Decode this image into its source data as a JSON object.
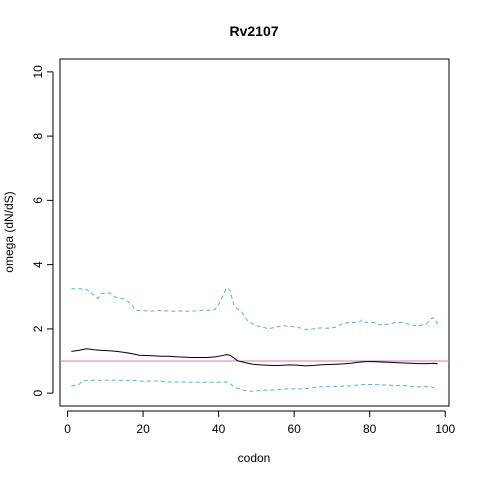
{
  "chart_data": {
    "type": "line",
    "title": "Rv2107",
    "xlabel": "codon",
    "ylabel": "omega (dN/dS)",
    "xlim": [
      -2,
      101
    ],
    "ylim": [
      -0.4,
      10.4
    ],
    "x_ticks": [
      0,
      20,
      40,
      60,
      80,
      100
    ],
    "y_ticks": [
      0,
      2,
      4,
      6,
      8,
      10
    ],
    "x_tick_labels": [
      "0",
      "20",
      "40",
      "60",
      "80",
      "100"
    ],
    "y_tick_labels": [
      "0",
      "2",
      "4",
      "6",
      "8",
      "10"
    ],
    "grid": false,
    "reference_line": {
      "y": 1,
      "color": "#c080c0"
    },
    "series": [
      {
        "role": "estimate",
        "style": "solid",
        "color": "#000000",
        "points": [
          [
            1,
            1.3
          ],
          [
            3,
            1.33
          ],
          [
            5,
            1.38
          ],
          [
            7,
            1.35
          ],
          [
            9,
            1.33
          ],
          [
            11,
            1.32
          ],
          [
            13,
            1.3
          ],
          [
            15,
            1.27
          ],
          [
            17,
            1.23
          ],
          [
            19,
            1.18
          ],
          [
            21,
            1.17
          ],
          [
            23,
            1.16
          ],
          [
            25,
            1.15
          ],
          [
            27,
            1.15
          ],
          [
            29,
            1.13
          ],
          [
            31,
            1.12
          ],
          [
            33,
            1.11
          ],
          [
            35,
            1.11
          ],
          [
            37,
            1.11
          ],
          [
            39,
            1.13
          ],
          [
            41,
            1.17
          ],
          [
            42,
            1.2
          ],
          [
            43,
            1.18
          ],
          [
            44,
            1.1
          ],
          [
            45,
            1.01
          ],
          [
            47,
            0.95
          ],
          [
            49,
            0.9
          ],
          [
            51,
            0.88
          ],
          [
            53,
            0.87
          ],
          [
            55,
            0.86
          ],
          [
            57,
            0.87
          ],
          [
            59,
            0.88
          ],
          [
            61,
            0.87
          ],
          [
            63,
            0.85
          ],
          [
            65,
            0.86
          ],
          [
            67,
            0.88
          ],
          [
            69,
            0.89
          ],
          [
            71,
            0.9
          ],
          [
            73,
            0.91
          ],
          [
            75,
            0.93
          ],
          [
            77,
            0.96
          ],
          [
            79,
            0.98
          ],
          [
            81,
            0.98
          ],
          [
            83,
            0.97
          ],
          [
            85,
            0.96
          ],
          [
            87,
            0.95
          ],
          [
            89,
            0.94
          ],
          [
            91,
            0.93
          ],
          [
            93,
            0.92
          ],
          [
            95,
            0.92
          ],
          [
            97,
            0.93
          ],
          [
            98,
            0.91
          ]
        ]
      },
      {
        "role": "upper",
        "style": "dashed",
        "color": "#4fb3e8",
        "points": [
          [
            1,
            3.25
          ],
          [
            3,
            3.25
          ],
          [
            5,
            3.23
          ],
          [
            7,
            3.05
          ],
          [
            8,
            2.95
          ],
          [
            9,
            3.1
          ],
          [
            11,
            3.12
          ],
          [
            13,
            2.97
          ],
          [
            15,
            2.93
          ],
          [
            16,
            2.85
          ],
          [
            17,
            2.75
          ],
          [
            18,
            2.58
          ],
          [
            20,
            2.57
          ],
          [
            22,
            2.55
          ],
          [
            24,
            2.57
          ],
          [
            26,
            2.56
          ],
          [
            28,
            2.55
          ],
          [
            30,
            2.56
          ],
          [
            32,
            2.55
          ],
          [
            34,
            2.56
          ],
          [
            36,
            2.58
          ],
          [
            38,
            2.58
          ],
          [
            39,
            2.6
          ],
          [
            40,
            2.75
          ],
          [
            41,
            3.0
          ],
          [
            42,
            3.25
          ],
          [
            42.5,
            3.27
          ],
          [
            43,
            3.2
          ],
          [
            44,
            2.75
          ],
          [
            45,
            2.62
          ],
          [
            46,
            2.55
          ],
          [
            47,
            2.35
          ],
          [
            48,
            2.22
          ],
          [
            50,
            2.1
          ],
          [
            52,
            2.05
          ],
          [
            53,
            2.0
          ],
          [
            55,
            2.05
          ],
          [
            57,
            2.1
          ],
          [
            59,
            2.08
          ],
          [
            61,
            2.05
          ],
          [
            63,
            1.98
          ],
          [
            65,
            2.0
          ],
          [
            67,
            2.03
          ],
          [
            69,
            2.02
          ],
          [
            71,
            2.05
          ],
          [
            73,
            2.18
          ],
          [
            75,
            2.2
          ],
          [
            77,
            2.2
          ],
          [
            78,
            2.28
          ],
          [
            79,
            2.2
          ],
          [
            81,
            2.2
          ],
          [
            83,
            2.12
          ],
          [
            85,
            2.15
          ],
          [
            87,
            2.2
          ],
          [
            89,
            2.2
          ],
          [
            91,
            2.12
          ],
          [
            93,
            2.1
          ],
          [
            95,
            2.15
          ],
          [
            96,
            2.3
          ],
          [
            97,
            2.35
          ],
          [
            98,
            2.15
          ]
        ]
      },
      {
        "role": "lower",
        "style": "dashed",
        "color": "#4fb3e8",
        "points": [
          [
            1,
            0.22
          ],
          [
            3,
            0.27
          ],
          [
            4,
            0.38
          ],
          [
            6,
            0.4
          ],
          [
            8,
            0.4
          ],
          [
            10,
            0.4
          ],
          [
            12,
            0.4
          ],
          [
            14,
            0.4
          ],
          [
            16,
            0.4
          ],
          [
            18,
            0.39
          ],
          [
            20,
            0.37
          ],
          [
            22,
            0.38
          ],
          [
            24,
            0.38
          ],
          [
            26,
            0.36
          ],
          [
            28,
            0.34
          ],
          [
            30,
            0.35
          ],
          [
            32,
            0.34
          ],
          [
            34,
            0.34
          ],
          [
            36,
            0.34
          ],
          [
            38,
            0.34
          ],
          [
            40,
            0.34
          ],
          [
            42,
            0.35
          ],
          [
            43,
            0.3
          ],
          [
            44,
            0.2
          ],
          [
            45,
            0.15
          ],
          [
            47,
            0.08
          ],
          [
            49,
            0.06
          ],
          [
            51,
            0.08
          ],
          [
            53,
            0.1
          ],
          [
            55,
            0.1
          ],
          [
            57,
            0.12
          ],
          [
            59,
            0.14
          ],
          [
            61,
            0.13
          ],
          [
            63,
            0.14
          ],
          [
            65,
            0.17
          ],
          [
            67,
            0.2
          ],
          [
            69,
            0.2
          ],
          [
            71,
            0.21
          ],
          [
            73,
            0.22
          ],
          [
            75,
            0.23
          ],
          [
            77,
            0.26
          ],
          [
            79,
            0.27
          ],
          [
            81,
            0.27
          ],
          [
            83,
            0.26
          ],
          [
            85,
            0.25
          ],
          [
            87,
            0.24
          ],
          [
            89,
            0.24
          ],
          [
            91,
            0.2
          ],
          [
            93,
            0.2
          ],
          [
            95,
            0.2
          ],
          [
            96,
            0.21
          ],
          [
            97,
            0.17
          ],
          [
            98,
            0.1
          ]
        ]
      }
    ]
  }
}
